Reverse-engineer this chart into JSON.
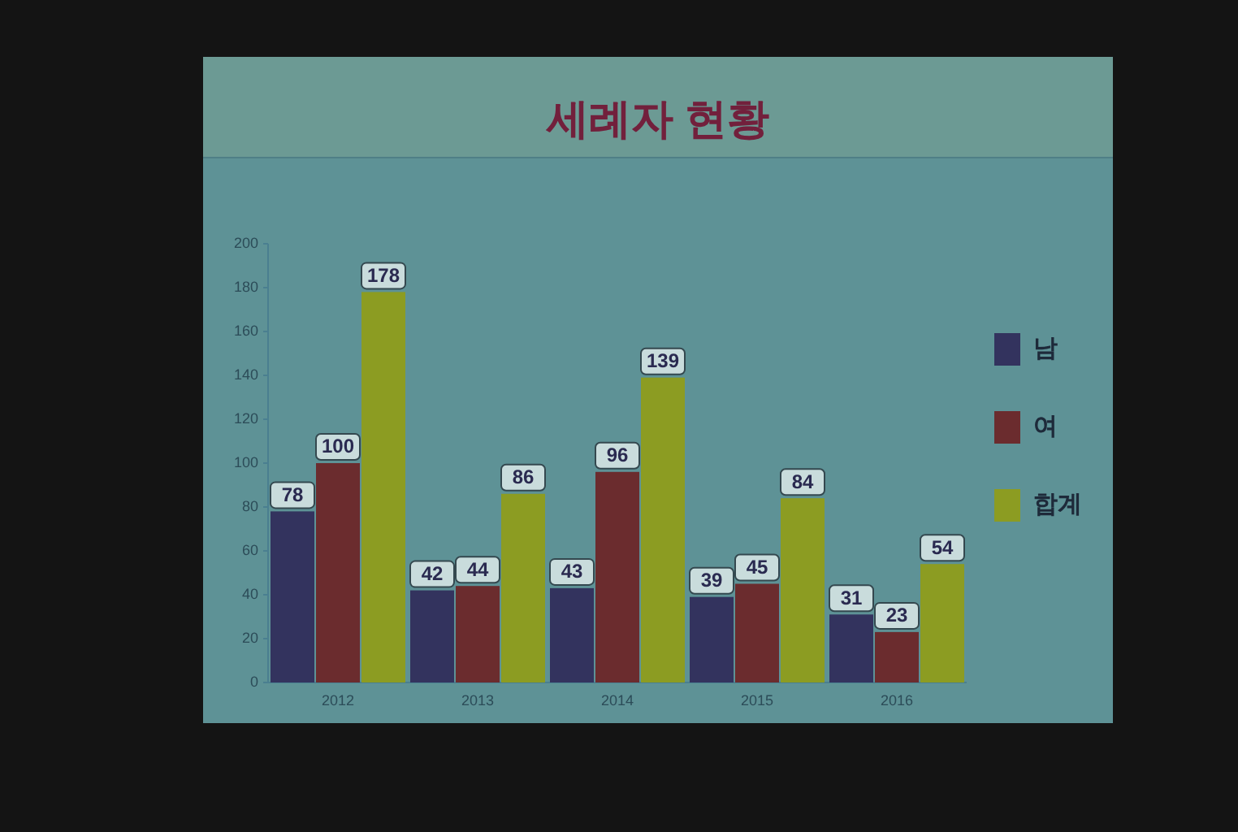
{
  "chart_data": {
    "type": "bar",
    "title": "세례자 현황",
    "categories": [
      "2012",
      "2013",
      "2014",
      "2015",
      "2016"
    ],
    "series": [
      {
        "name": "남",
        "color": "#33335e",
        "values": [
          78,
          42,
          43,
          39,
          31
        ]
      },
      {
        "name": "여",
        "color": "#6b2c2e",
        "values": [
          100,
          44,
          96,
          45,
          23
        ]
      },
      {
        "name": "합계",
        "color": "#8c9c22",
        "values": [
          178,
          86,
          139,
          84,
          54
        ]
      }
    ],
    "ylim": [
      0,
      200
    ],
    "yticks": [
      0,
      20,
      40,
      60,
      80,
      100,
      120,
      140,
      160,
      180,
      200
    ],
    "data_labels": true,
    "legend": "right"
  }
}
